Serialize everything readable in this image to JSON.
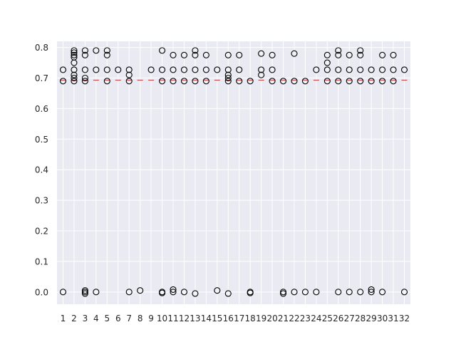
{
  "chart_data": {
    "type": "box",
    "title": "",
    "xlabel": "",
    "ylabel": "",
    "categories": [
      "1",
      "2",
      "3",
      "4",
      "5",
      "6",
      "7",
      "8",
      "9",
      "10",
      "11",
      "12",
      "13",
      "14",
      "15",
      "16",
      "17",
      "18",
      "19",
      "20",
      "21",
      "22",
      "23",
      "24",
      "25",
      "26",
      "27",
      "28",
      "29",
      "30",
      "31",
      "32"
    ],
    "ylim": [
      -0.04,
      0.82
    ],
    "yticks": [
      0.0,
      0.1,
      0.2,
      0.3,
      0.4,
      0.5,
      0.6,
      0.7,
      0.8
    ],
    "ytick_labels": [
      "0.0",
      "0.1",
      "0.2",
      "0.3",
      "0.4",
      "0.5",
      "0.6",
      "0.7",
      "0.8"
    ],
    "grid": true,
    "median": 0.693,
    "outliers": [
      [
        0.727,
        0.69,
        0.0
      ],
      [
        0.79,
        0.783,
        0.775,
        0.768,
        0.75,
        0.727,
        0.71,
        0.7,
        0.69
      ],
      [
        0.79,
        0.775,
        0.727,
        0.7,
        0.69,
        0.005,
        0.0,
        -0.005
      ],
      [
        0.79,
        0.727,
        0.0
      ],
      [
        0.79,
        0.775,
        0.727,
        0.69
      ],
      [
        0.727
      ],
      [
        0.727,
        0.71,
        0.69,
        0.0
      ],
      [
        0.005
      ],
      [
        0.727
      ],
      [
        0.79,
        0.727,
        0.69,
        0.0,
        -0.003
      ],
      [
        0.775,
        0.727,
        0.69,
        0.008,
        0.0
      ],
      [
        0.775,
        0.727,
        0.69,
        0.0
      ],
      [
        0.79,
        0.775,
        0.727,
        0.69,
        -0.005
      ],
      [
        0.775,
        0.727,
        0.69
      ],
      [
        0.727,
        0.005
      ],
      [
        0.775,
        0.727,
        0.71,
        0.7,
        0.69,
        -0.005
      ],
      [
        0.775,
        0.727,
        0.69
      ],
      [
        0.69,
        0.0,
        -0.003
      ],
      [
        0.78,
        0.727,
        0.71
      ],
      [
        0.775,
        0.727,
        0.69
      ],
      [
        0.69,
        0.0,
        -0.005
      ],
      [
        0.78,
        0.69,
        0.0
      ],
      [
        0.69,
        0.0
      ],
      [
        0.727,
        0.0
      ],
      [
        0.775,
        0.75,
        0.727,
        0.69
      ],
      [
        0.79,
        0.775,
        0.727,
        0.69,
        0.0
      ],
      [
        0.775,
        0.727,
        0.69,
        0.0
      ],
      [
        0.79,
        0.775,
        0.727,
        0.69,
        0.0
      ],
      [
        0.727,
        0.69,
        0.008,
        0.0
      ],
      [
        0.775,
        0.727,
        0.69,
        0.0
      ],
      [
        0.775,
        0.727,
        0.69
      ],
      [
        0.727,
        0.0
      ]
    ],
    "colors": {
      "background": "#eaeaf2",
      "grid": "#ffffff",
      "median": "#c44e52",
      "marker_edge": "#000000"
    }
  }
}
